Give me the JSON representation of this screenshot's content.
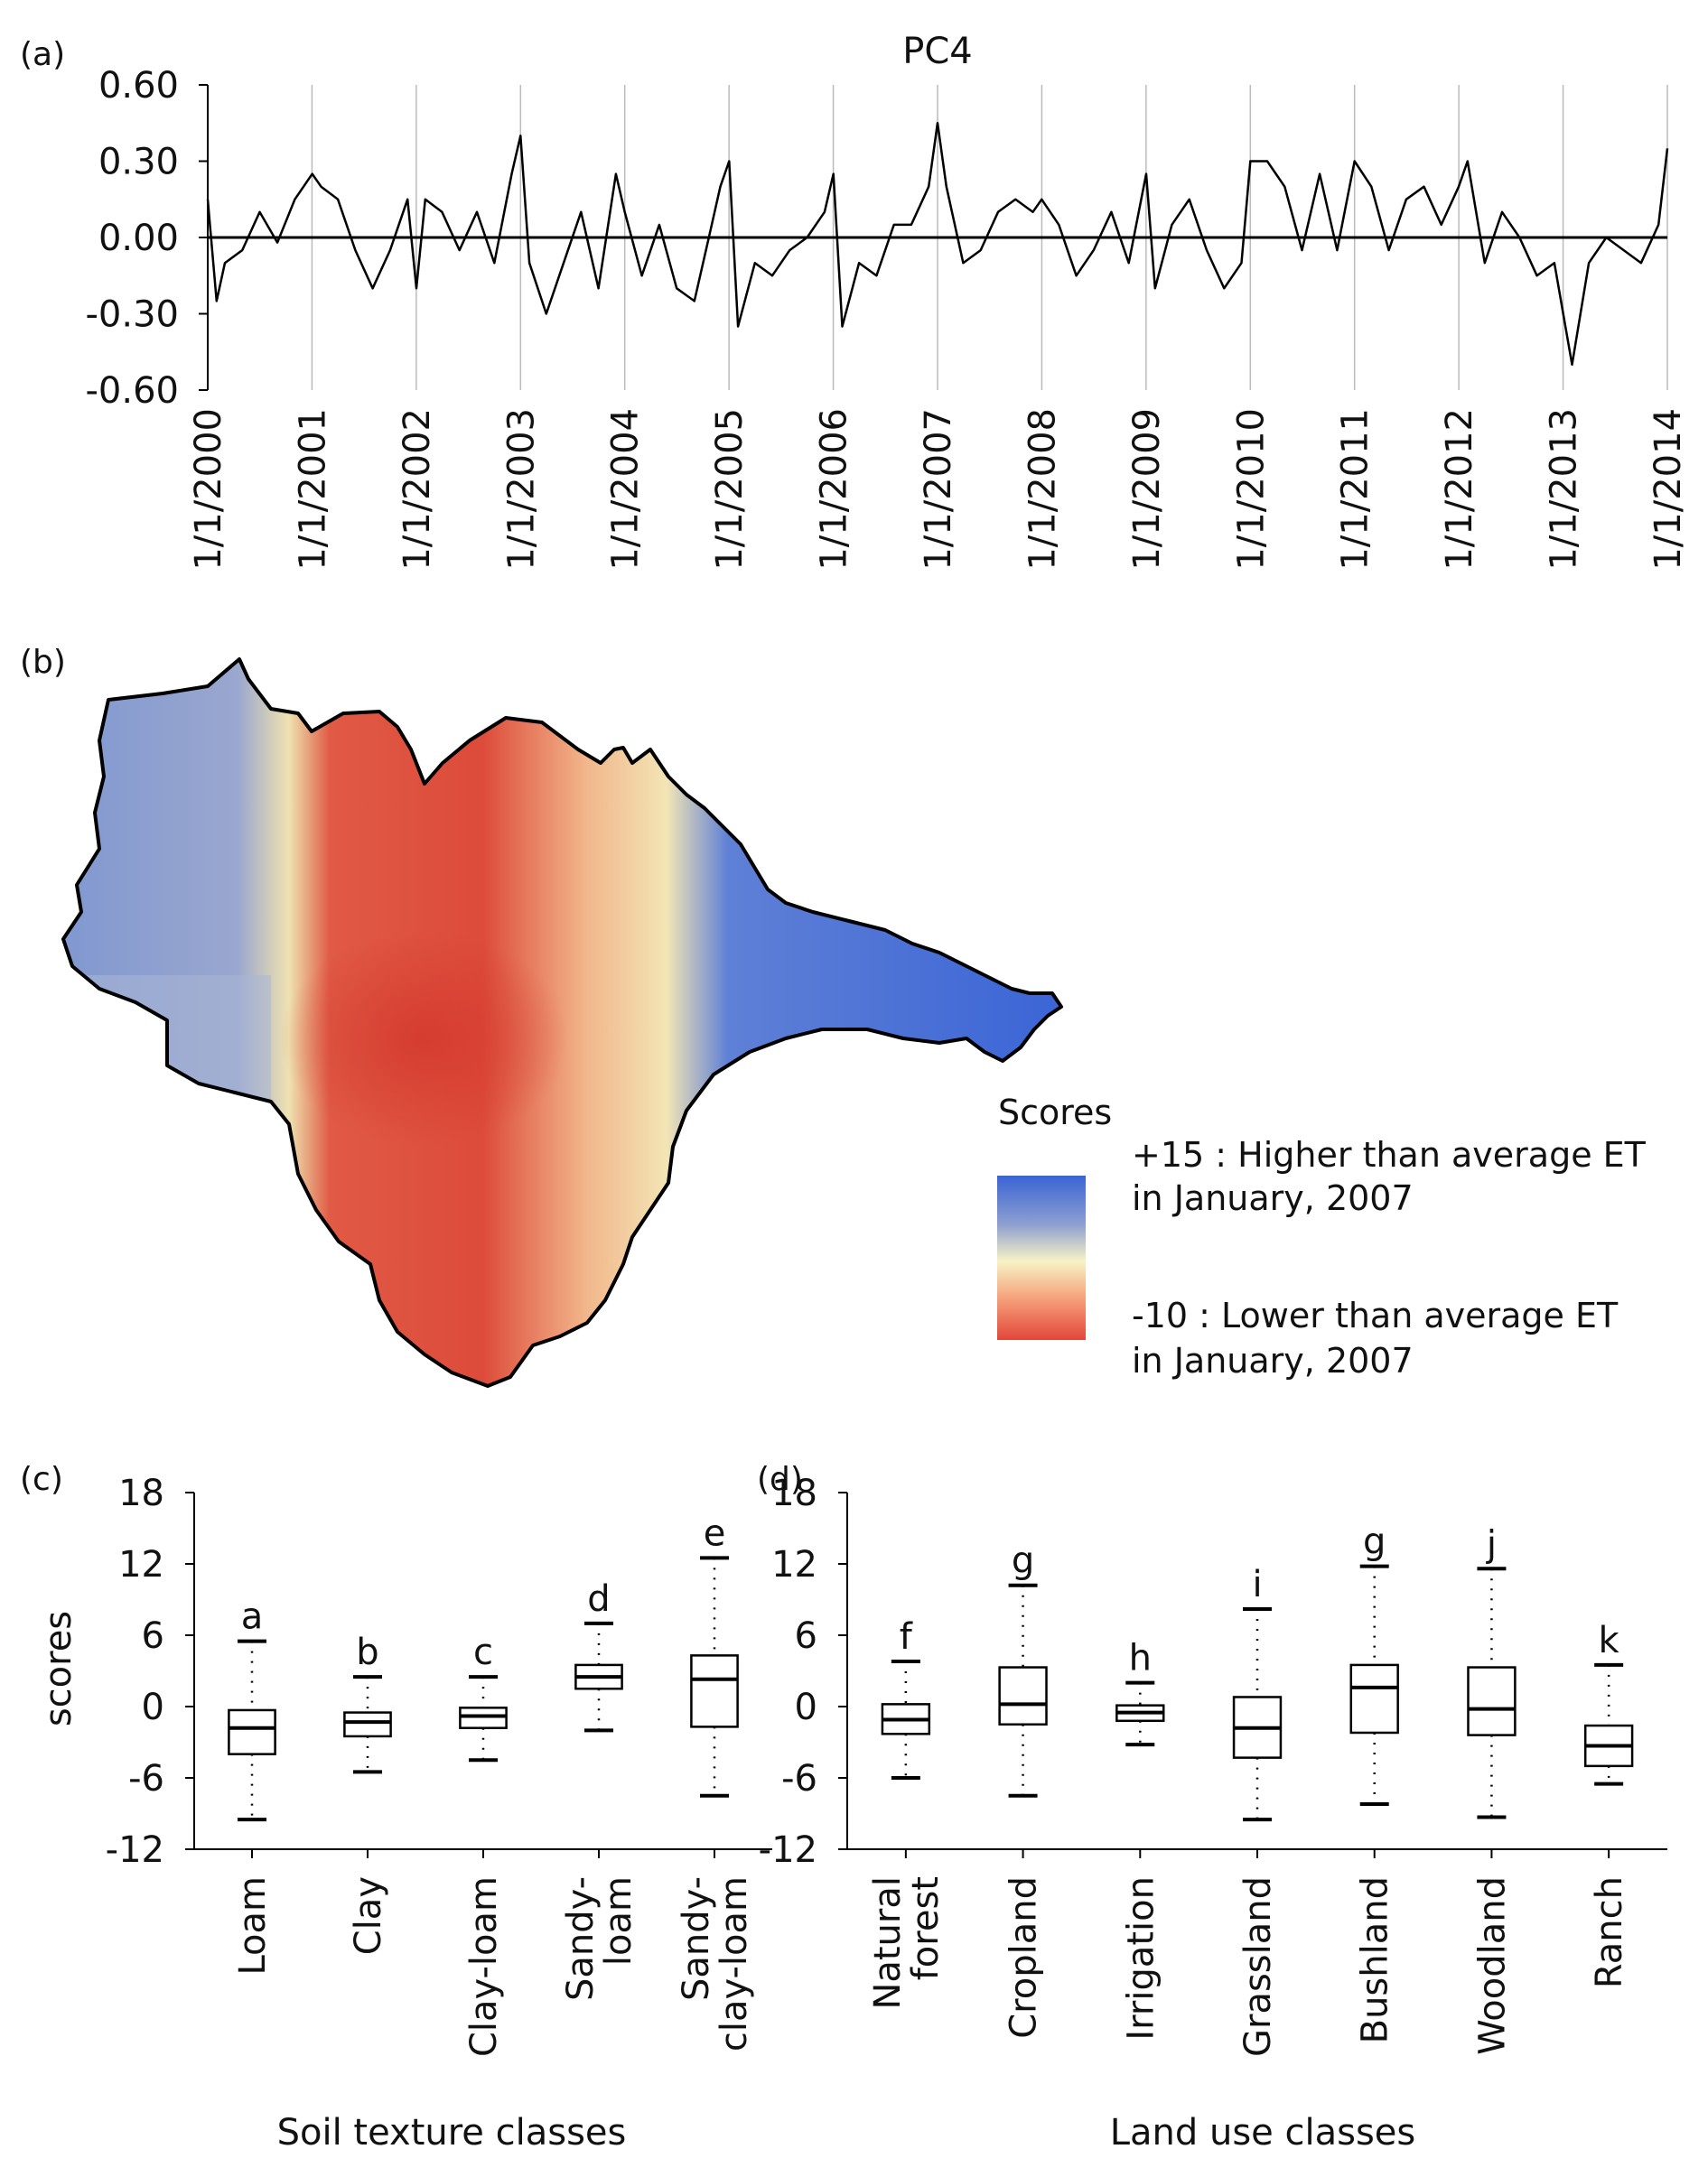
{
  "colors": {
    "high": "#3a64d6",
    "mid": "#f7f3c6",
    "low": "#e3463a",
    "line": "#000000",
    "gridline": "#bbbbbb"
  },
  "panel_a": {
    "label": "(a)",
    "title": "PC4",
    "y_ticks": [
      "0.60",
      "0.30",
      "0.00",
      "-0.30",
      "-0.60"
    ],
    "x_ticks": [
      "1/1/2000",
      "1/1/2001",
      "1/1/2002",
      "1/1/2003",
      "1/1/2004",
      "1/1/2005",
      "1/1/2006",
      "1/1/2007",
      "1/1/2008",
      "1/1/2009",
      "1/1/2010",
      "1/1/2011",
      "1/1/2012",
      "1/1/2013",
      "1/1/2014"
    ]
  },
  "panel_b": {
    "label": "(b)",
    "legend_title": "Scores",
    "legend_high_1": "+15 : Higher than average  ET",
    "legend_high_2": "in January, 2007",
    "legend_low_1": "-10 :  Lower than average  ET",
    "legend_low_2": "in January, 2007"
  },
  "panel_c": {
    "label": "(c)",
    "ylabel": "scores",
    "xlabel": "Soil texture classes",
    "y_ticks": [
      "18",
      "12",
      "6",
      "0",
      "-6",
      "-12"
    ]
  },
  "panel_d": {
    "label": "(d)",
    "xlabel": "Land use classes",
    "y_ticks": [
      "18",
      "12",
      "6",
      "0",
      "-6",
      "-12"
    ]
  },
  "chart_data": [
    {
      "type": "line",
      "panel": "a",
      "title": "PC4",
      "ylim": [
        -0.6,
        0.6
      ],
      "xlim": [
        "2000-01-01",
        "2014-01-01"
      ],
      "y_ticks": [
        0.6,
        0.3,
        0.0,
        -0.3,
        -0.6
      ],
      "reference_line_y": 0.0,
      "vertical_gridlines": true,
      "x": [
        "2000-01",
        "2000-02",
        "2000-03",
        "2000-05",
        "2000-07",
        "2000-09",
        "2000-11",
        "2001-01",
        "2001-02",
        "2001-04",
        "2001-06",
        "2001-08",
        "2001-10",
        "2001-12",
        "2002-01",
        "2002-02",
        "2002-04",
        "2002-06",
        "2002-08",
        "2002-10",
        "2002-12",
        "2003-01",
        "2003-02",
        "2003-04",
        "2003-06",
        "2003-08",
        "2003-10",
        "2003-12",
        "2004-01",
        "2004-03",
        "2004-05",
        "2004-07",
        "2004-09",
        "2004-11",
        "2004-12",
        "2005-01",
        "2005-02",
        "2005-04",
        "2005-06",
        "2005-08",
        "2005-10",
        "2005-12",
        "2006-01",
        "2006-02",
        "2006-04",
        "2006-06",
        "2006-08",
        "2006-10",
        "2006-12",
        "2007-01",
        "2007-02",
        "2007-04",
        "2007-06",
        "2007-08",
        "2007-10",
        "2007-12",
        "2008-01",
        "2008-03",
        "2008-05",
        "2008-07",
        "2008-09",
        "2008-11",
        "2009-01",
        "2009-02",
        "2009-04",
        "2009-06",
        "2009-08",
        "2009-10",
        "2009-12",
        "2010-01",
        "2010-03",
        "2010-05",
        "2010-07",
        "2010-09",
        "2010-11",
        "2011-01",
        "2011-03",
        "2011-05",
        "2011-07",
        "2011-09",
        "2011-11",
        "2012-01",
        "2012-02",
        "2012-04",
        "2012-06",
        "2012-08",
        "2012-10",
        "2012-12",
        "2013-01",
        "2013-02",
        "2013-04",
        "2013-06",
        "2013-08",
        "2013-10",
        "2013-12",
        "2014-01"
      ],
      "y": [
        0.15,
        -0.25,
        -0.1,
        -0.05,
        0.1,
        -0.02,
        0.15,
        0.25,
        0.2,
        0.15,
        -0.05,
        -0.2,
        -0.05,
        0.15,
        -0.2,
        0.15,
        0.1,
        -0.05,
        0.1,
        -0.1,
        0.25,
        0.4,
        -0.1,
        -0.3,
        -0.1,
        0.1,
        -0.2,
        0.25,
        0.1,
        -0.15,
        0.05,
        -0.2,
        -0.25,
        0.05,
        0.2,
        0.3,
        -0.35,
        -0.1,
        -0.15,
        -0.05,
        0.0,
        0.1,
        0.25,
        -0.35,
        -0.1,
        -0.15,
        0.05,
        0.05,
        0.2,
        0.45,
        0.2,
        -0.1,
        -0.05,
        0.1,
        0.15,
        0.1,
        0.15,
        0.05,
        -0.15,
        -0.05,
        0.1,
        -0.1,
        0.25,
        -0.2,
        0.05,
        0.15,
        -0.05,
        -0.2,
        -0.1,
        0.3,
        0.3,
        0.2,
        -0.05,
        0.25,
        -0.05,
        0.3,
        0.2,
        -0.05,
        0.15,
        0.2,
        0.05,
        0.2,
        0.3,
        -0.1,
        0.1,
        0.0,
        -0.15,
        -0.1,
        -0.3,
        -0.5,
        -0.1,
        0.0,
        -0.05,
        -0.1,
        0.05,
        0.35
      ]
    },
    {
      "type": "box",
      "panel": "c",
      "xlabel": "Soil texture classes",
      "ylabel": "scores",
      "ylim": [
        -12,
        18
      ],
      "y_ticks": [
        18,
        12,
        6,
        0,
        -6,
        -12
      ],
      "categories": [
        "Loam",
        "Clay",
        "Clay-loam",
        "Sandy-loam",
        "Sandy-clay-loam"
      ],
      "category_lines": [
        [
          "Loam"
        ],
        [
          "Clay"
        ],
        [
          "Clay-loam"
        ],
        [
          "Sandy-",
          "loam"
        ],
        [
          "Sandy-",
          "clay-loam"
        ]
      ],
      "letters": [
        "a",
        "b",
        "c",
        "d",
        "e"
      ],
      "boxes": [
        {
          "whisker_low": -9.5,
          "q1": -4.0,
          "median": -1.8,
          "q3": -0.3,
          "whisker_high": 5.5
        },
        {
          "whisker_low": -5.5,
          "q1": -2.5,
          "median": -1.3,
          "q3": -0.5,
          "whisker_high": 2.5
        },
        {
          "whisker_low": -4.5,
          "q1": -1.8,
          "median": -0.8,
          "q3": -0.1,
          "whisker_high": 2.5
        },
        {
          "whisker_low": -2.0,
          "q1": 1.5,
          "median": 2.5,
          "q3": 3.5,
          "whisker_high": 7.0
        },
        {
          "whisker_low": -7.5,
          "q1": -1.7,
          "median": 2.3,
          "q3": 4.3,
          "whisker_high": 12.5
        }
      ]
    },
    {
      "type": "box",
      "panel": "d",
      "xlabel": "Land use classes",
      "ylim": [
        -12,
        18
      ],
      "y_ticks": [
        18,
        12,
        6,
        0,
        -6,
        -12
      ],
      "categories": [
        "Natural forest",
        "Cropland",
        "Irrigation",
        "Grassland",
        "Bushland",
        "Woodland",
        "Ranch"
      ],
      "category_lines": [
        [
          "Natural",
          "forest"
        ],
        [
          "Cropland"
        ],
        [
          "Irrigation"
        ],
        [
          "Grassland"
        ],
        [
          "Bushland"
        ],
        [
          "Woodland"
        ],
        [
          "Ranch"
        ]
      ],
      "letters": [
        "f",
        "g",
        "h",
        "i",
        "g",
        "j",
        "k"
      ],
      "boxes": [
        {
          "whisker_low": -6.0,
          "q1": -2.3,
          "median": -1.1,
          "q3": 0.2,
          "whisker_high": 3.8
        },
        {
          "whisker_low": -7.5,
          "q1": -1.5,
          "median": 0.2,
          "q3": 3.3,
          "whisker_high": 10.2
        },
        {
          "whisker_low": -3.2,
          "q1": -1.2,
          "median": -0.5,
          "q3": 0.1,
          "whisker_high": 2.0
        },
        {
          "whisker_low": -9.5,
          "q1": -4.3,
          "median": -1.8,
          "q3": 0.8,
          "whisker_high": 8.2
        },
        {
          "whisker_low": -8.2,
          "q1": -2.2,
          "median": 1.6,
          "q3": 3.5,
          "whisker_high": 11.8
        },
        {
          "whisker_low": -9.3,
          "q1": -2.4,
          "median": -0.2,
          "q3": 3.3,
          "whisker_high": 11.6
        },
        {
          "whisker_low": -6.5,
          "q1": -5.0,
          "median": -3.3,
          "q3": -1.6,
          "whisker_high": 3.5
        }
      ]
    }
  ]
}
